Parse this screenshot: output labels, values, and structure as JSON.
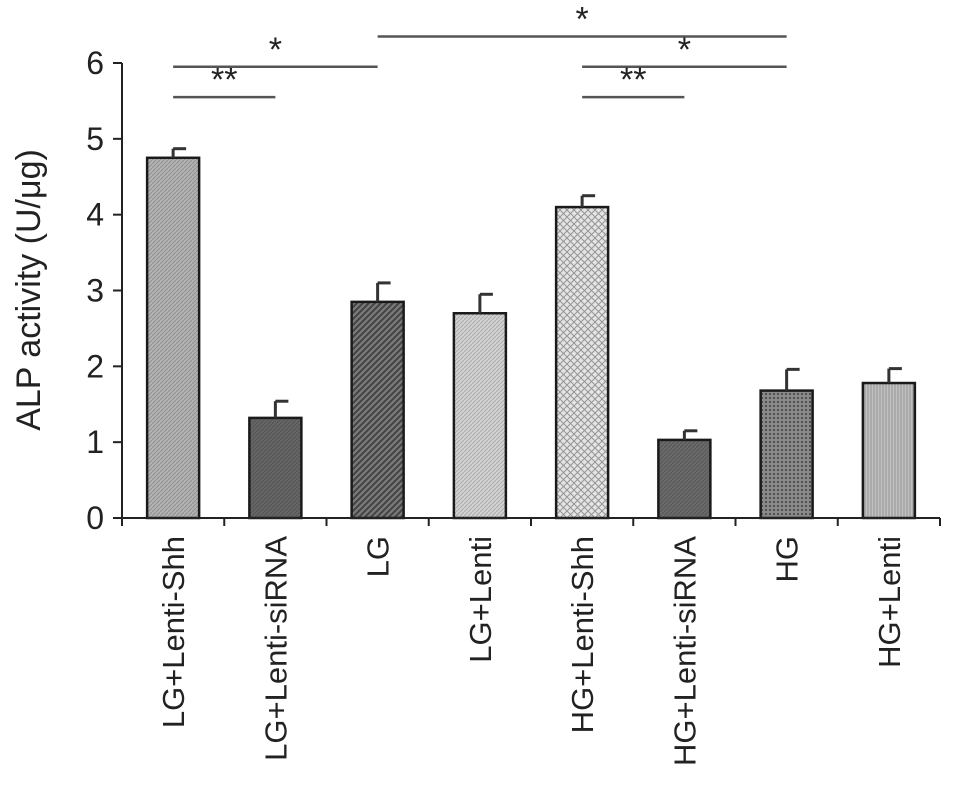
{
  "chart_data": {
    "type": "bar",
    "ylabel": "ALP activity (U/μg)",
    "xlabel": "",
    "ylim": [
      0,
      6
    ],
    "yticks": [
      0,
      1,
      2,
      3,
      4,
      5,
      6
    ],
    "categories": [
      "LG+Lenti-Shh",
      "LG+Lenti-siRNA",
      "LG",
      "LG+Lenti",
      "HG+Lenti-Shh",
      "HG+Lenti-siRNA",
      "HG",
      "HG+Lenti"
    ],
    "values": [
      4.75,
      1.32,
      2.85,
      2.7,
      4.1,
      1.03,
      1.68,
      1.78
    ],
    "errors": [
      0.12,
      0.22,
      0.25,
      0.25,
      0.15,
      0.12,
      0.28,
      0.19
    ],
    "bar_fill": [
      "#b2b2b2",
      "#666666",
      "#7a7a7a",
      "#d2d2d2",
      "#e4e4e4",
      "#6a6a6a",
      "#8a8a8a",
      "#c2c2c2"
    ],
    "bar_pattern": [
      "fine",
      "fine",
      "diagonal",
      "fine",
      "crosshatch",
      "fine",
      "dots",
      "vertical"
    ],
    "significance": [
      {
        "from": 0,
        "to": 1,
        "label": "**",
        "y": 5.55
      },
      {
        "from": 0,
        "to": 2,
        "label": "*",
        "y": 5.95
      },
      {
        "from": 2,
        "to": 6,
        "label": "*",
        "y": 6.35
      },
      {
        "from": 4,
        "to": 6,
        "label": "*",
        "y": 5.95
      },
      {
        "from": 4,
        "to": 5,
        "label": "**",
        "y": 5.55
      }
    ],
    "grid": false,
    "legend": "none"
  }
}
